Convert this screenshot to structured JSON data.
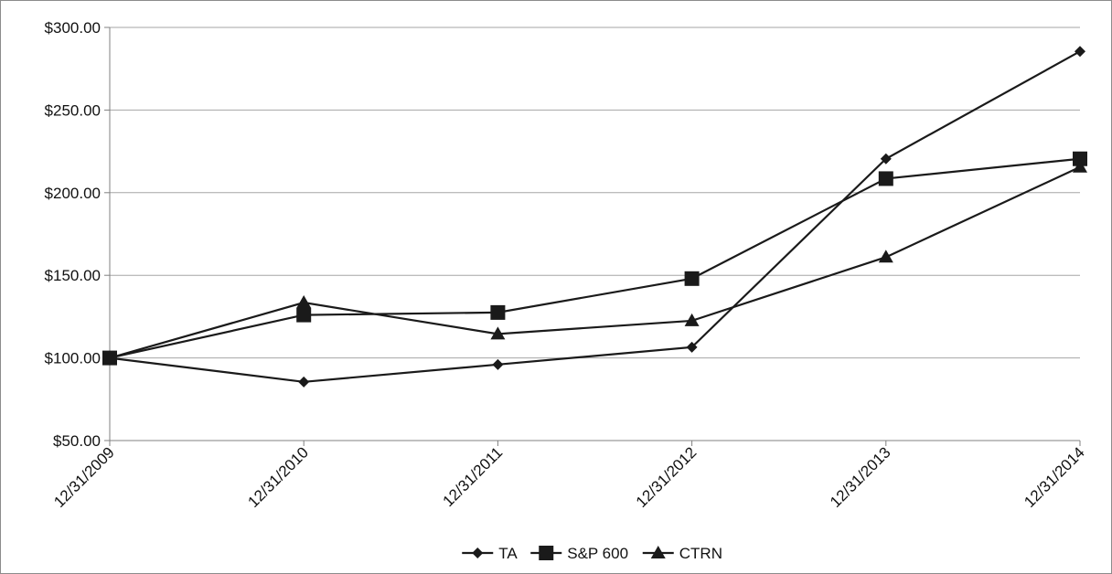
{
  "chart_data": {
    "type": "line",
    "title": "",
    "xlabel": "",
    "ylabel": "",
    "categories": [
      "12/31/2009",
      "12/31/2010",
      "12/31/2011",
      "12/31/2012",
      "12/31/2013",
      "12/31/2014"
    ],
    "ylim": [
      50,
      300
    ],
    "y_ticks": [
      50,
      100,
      150,
      200,
      250,
      300
    ],
    "y_tick_labels": [
      "$50.00",
      "$100.00",
      "$150.00",
      "$200.00",
      "$250.00",
      "$300.00"
    ],
    "grid": "horizontal",
    "legend_position": "bottom",
    "series": [
      {
        "name": "TA",
        "marker": "diamond",
        "color": "#1a1a1a",
        "values": [
          100,
          85.5,
          96,
          106.5,
          220.5,
          285.5
        ]
      },
      {
        "name": "S&P 600",
        "marker": "square",
        "color": "#1a1a1a",
        "values": [
          100,
          126,
          127.5,
          148,
          208.5,
          220.5
        ]
      },
      {
        "name": "CTRN",
        "marker": "triangle",
        "color": "#1a1a1a",
        "values": [
          100,
          133.5,
          114.5,
          122.5,
          161,
          215.5
        ]
      }
    ]
  }
}
